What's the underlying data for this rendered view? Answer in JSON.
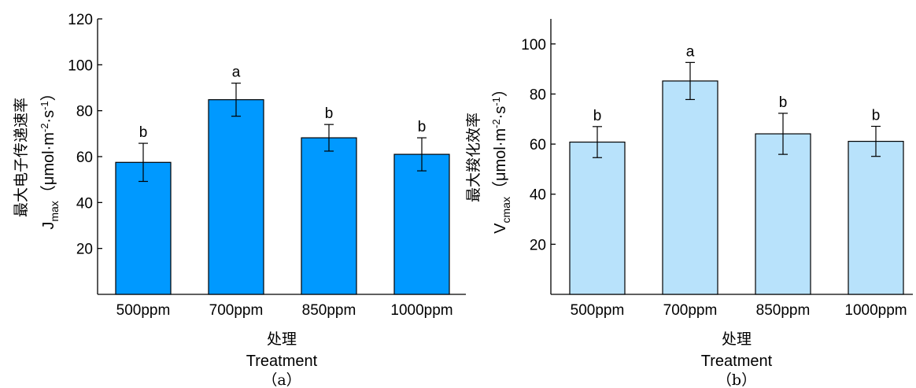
{
  "panels": [
    {
      "panel_label": "（a）",
      "xlabel_cn": "处理",
      "xlabel_en": "Treatment",
      "ylabel_cn": "最大电子传递速率",
      "ylabel_sym": "J",
      "ylabel_sub": "max",
      "ylabel_unit_open": "（μmol·m",
      "ylabel_unit_sup1": "-2",
      "ylabel_unit_mid": "·s",
      "ylabel_unit_sup2": "-1",
      "ylabel_unit_close": "）"
    },
    {
      "panel_label": "（b）",
      "xlabel_cn": "处理",
      "xlabel_en": "Treatment",
      "ylabel_cn": "最大羧化效率",
      "ylabel_sym": "V",
      "ylabel_sub": "cmax",
      "ylabel_unit_open": "（μmol·m",
      "ylabel_unit_sup1": "-2",
      "ylabel_unit_mid": "·s",
      "ylabel_unit_sup2": "-1",
      "ylabel_unit_close": "）"
    }
  ],
  "chart_data": [
    {
      "type": "bar",
      "categories": [
        "500ppm",
        "700ppm",
        "850ppm",
        "1000ppm"
      ],
      "values": [
        57.5,
        84.8,
        68.2,
        61.0
      ],
      "errors": [
        8.3,
        7.2,
        5.8,
        7.2
      ],
      "significance": [
        "b",
        "a",
        "b",
        "b"
      ],
      "ylim": [
        0,
        120
      ],
      "yticks": [
        20,
        40,
        60,
        80,
        100,
        120
      ],
      "bar_color": "#0099ff",
      "xlabel": "Treatment",
      "ylabel": "Jmax"
    },
    {
      "type": "bar",
      "categories": [
        "500ppm",
        "700ppm",
        "850ppm",
        "1000ppm"
      ],
      "values": [
        60.8,
        85.2,
        64.1,
        61.1
      ],
      "errors": [
        6.2,
        7.4,
        8.2,
        6.0
      ],
      "significance": [
        "b",
        "a",
        "b",
        "b"
      ],
      "ylim": [
        0,
        110
      ],
      "yticks": [
        20,
        40,
        60,
        80,
        100
      ],
      "bar_color": "#b8e2fb",
      "xlabel": "Treatment",
      "ylabel": "Vcmax"
    }
  ]
}
